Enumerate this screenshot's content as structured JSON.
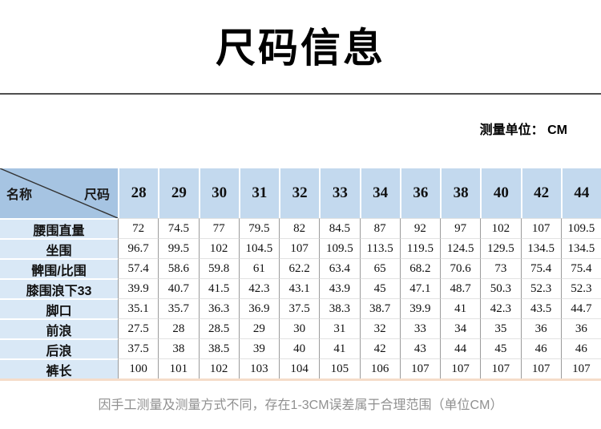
{
  "page": {
    "title": "尺码信息",
    "unit_note": "测量单位： CM",
    "footer_note": "因手工测量及测量方式不同，存在1-3CM误差属于合理范围（单位CM）"
  },
  "table": {
    "corner": {
      "left_label": "名称",
      "right_label": "尺码"
    },
    "sizes": [
      "28",
      "29",
      "30",
      "31",
      "32",
      "33",
      "34",
      "36",
      "38",
      "40",
      "42",
      "44"
    ],
    "rows": [
      {
        "label": "腰围直量",
        "values": [
          "72",
          "74.5",
          "77",
          "79.5",
          "82",
          "84.5",
          "87",
          "92",
          "97",
          "102",
          "107",
          "109.5"
        ]
      },
      {
        "label": "坐围",
        "values": [
          "96.7",
          "99.5",
          "102",
          "104.5",
          "107",
          "109.5",
          "113.5",
          "119.5",
          "124.5",
          "129.5",
          "134.5",
          "134.5"
        ]
      },
      {
        "label": "髀围/比围",
        "values": [
          "57.4",
          "58.6",
          "59.8",
          "61",
          "62.2",
          "63.4",
          "65",
          "68.2",
          "70.6",
          "73",
          "75.4",
          "75.4"
        ]
      },
      {
        "label": "膝围浪下33",
        "values": [
          "39.9",
          "40.7",
          "41.5",
          "42.3",
          "43.1",
          "43.9",
          "45",
          "47.1",
          "48.7",
          "50.3",
          "52.3",
          "52.3"
        ]
      },
      {
        "label": "脚口",
        "values": [
          "35.1",
          "35.7",
          "36.3",
          "36.9",
          "37.5",
          "38.3",
          "38.7",
          "39.9",
          "41",
          "42.3",
          "43.5",
          "44.7"
        ]
      },
      {
        "label": "前浪",
        "values": [
          "27.5",
          "28",
          "28.5",
          "29",
          "30",
          "31",
          "32",
          "33",
          "34",
          "35",
          "36",
          "36"
        ]
      },
      {
        "label": "后浪",
        "values": [
          "37.5",
          "38",
          "38.5",
          "39",
          "40",
          "41",
          "42",
          "43",
          "44",
          "45",
          "46",
          "46"
        ]
      },
      {
        "label": "裤长",
        "values": [
          "100",
          "101",
          "102",
          "103",
          "104",
          "105",
          "106",
          "107",
          "107",
          "107",
          "107",
          "107"
        ]
      }
    ]
  },
  "colors": {
    "header_blue": "#c3d9ee",
    "label_blue": "#d9e8f6",
    "corner_blue": "#a6c4e2",
    "divider_gray": "#4f4f4f",
    "bottom_pink": "#f5dcc9",
    "grid_gray": "#9b9b9b",
    "row_line": "#e2e2e2",
    "footer_gray": "#909090",
    "text_black": "#1a1a1a"
  }
}
